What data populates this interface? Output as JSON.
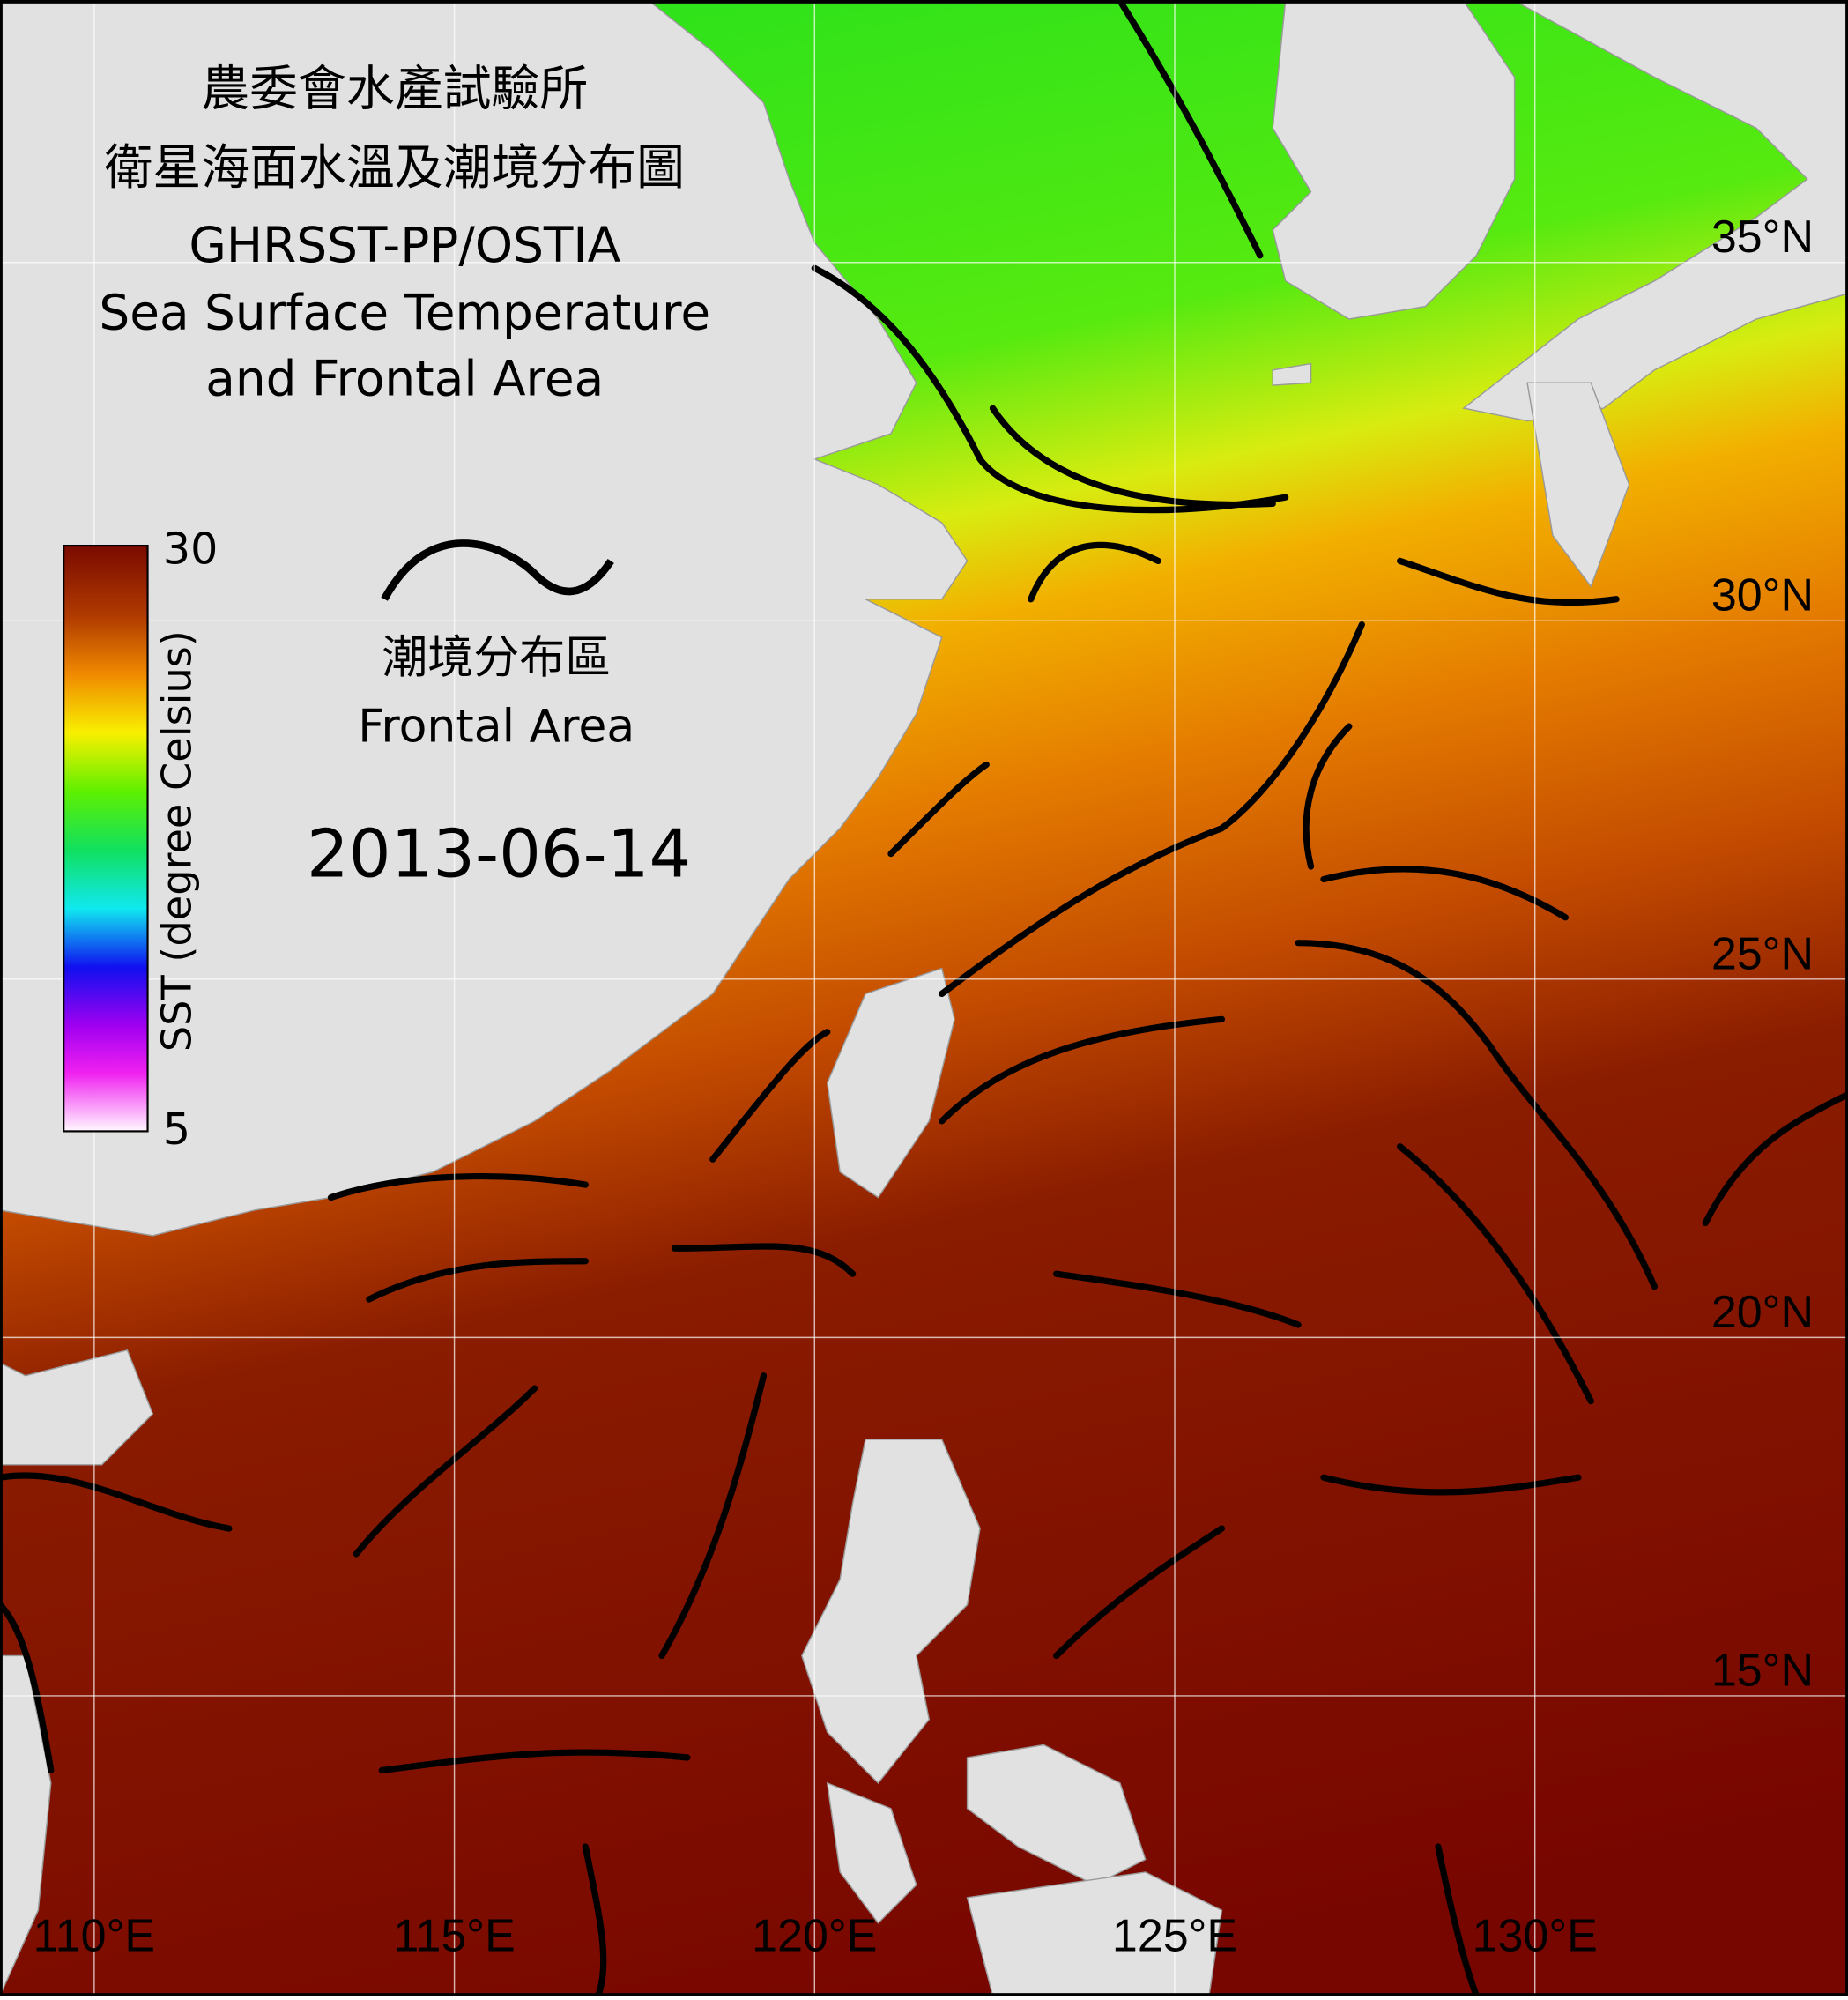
{
  "header": {
    "title_zh_1": "農委會水產試驗所",
    "title_zh_2": "衛星海面水溫及潮境分布圖",
    "title_en_1": "GHRSST-PP/OSTIA",
    "title_en_2": "Sea Surface Temperature",
    "title_en_3": "and Frontal Area"
  },
  "colorbar": {
    "label": "SST (degree Celsius)",
    "range": [
      5,
      30
    ],
    "ticks": [
      30,
      5
    ]
  },
  "legend": {
    "label_zh": "潮境分布區",
    "label_en": "Frontal Area"
  },
  "date": "2013-06-14",
  "map": {
    "lat_ticks": [
      {
        "value": 35,
        "label": "35°N"
      },
      {
        "value": 30,
        "label": "30°N"
      },
      {
        "value": 25,
        "label": "25°N"
      },
      {
        "value": 20,
        "label": "20°N"
      },
      {
        "value": 15,
        "label": "15°N"
      }
    ],
    "lon_ticks": [
      {
        "value": 110,
        "label": "110°E"
      },
      {
        "value": 115,
        "label": "115°E"
      },
      {
        "value": 120,
        "label": "120°E"
      },
      {
        "value": 125,
        "label": "125°E"
      },
      {
        "value": 130,
        "label": "130°E"
      }
    ]
  }
}
